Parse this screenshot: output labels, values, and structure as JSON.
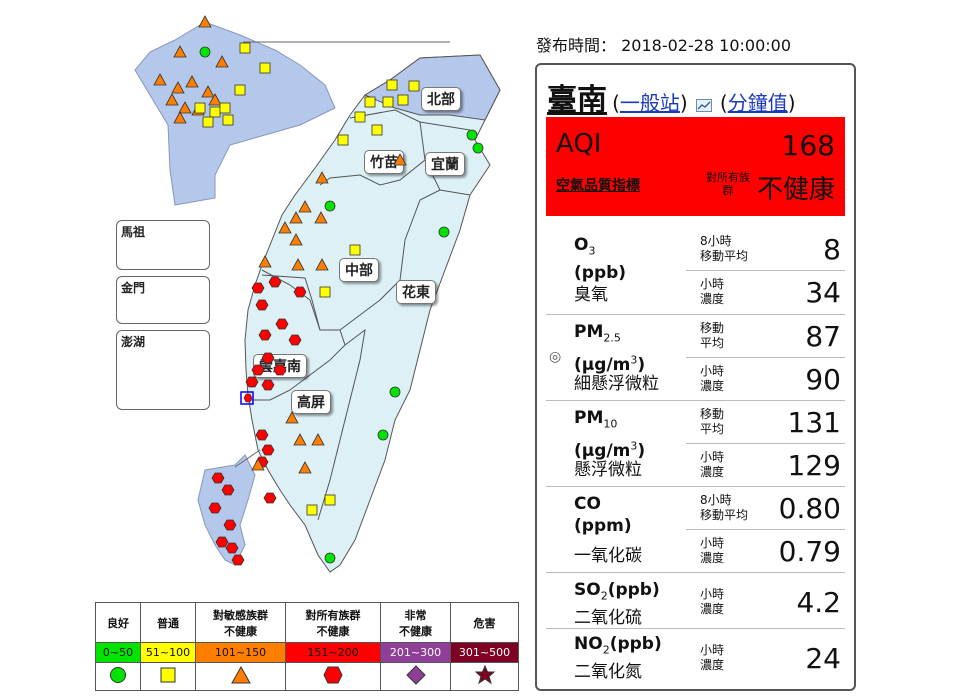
{
  "publish": {
    "label": "發布時間：",
    "datetime": "2018-02-28 10:00:00"
  },
  "station": {
    "name": "臺南",
    "type_link": "一般站",
    "minute_link": "分鐘值",
    "chart_icon": "line-chart-icon"
  },
  "aqi": {
    "label": "AQI",
    "value": "168",
    "subtitle": "空氣品質指標",
    "target_group": "對所有族群",
    "status": "不健康",
    "color": "#ff0000"
  },
  "pollutants": [
    {
      "key": "o3",
      "symbol": "O",
      "subscript": "3",
      "unit": "(ppb)",
      "chinese": "臭氧",
      "rows": [
        {
          "label_1": "8小時",
          "label_2": "移動平均",
          "value": "8"
        },
        {
          "label_1": "小時",
          "label_2": "濃度",
          "value": "34"
        }
      ]
    },
    {
      "key": "pm25",
      "symbol": "PM",
      "subscript": "2.5",
      "unit": "(μg/m",
      "unit_sup": "3",
      "unit_close": ")",
      "chinese": "細懸浮微粒",
      "radio": "◎",
      "rows": [
        {
          "label_1": "移動",
          "label_2": "平均",
          "value": "87"
        },
        {
          "label_1": "小時",
          "label_2": "濃度",
          "value": "90"
        }
      ]
    },
    {
      "key": "pm10",
      "symbol": "PM",
      "subscript": "10",
      "unit": "(μg/m",
      "unit_sup": "3",
      "unit_close": ")",
      "chinese": "懸浮微粒",
      "rows": [
        {
          "label_1": "移動",
          "label_2": "平均",
          "value": "131"
        },
        {
          "label_1": "小時",
          "label_2": "濃度",
          "value": "129"
        }
      ]
    },
    {
      "key": "co",
      "symbol": "CO",
      "unit": "(ppm)",
      "chinese": "一氧化碳",
      "rows": [
        {
          "label_1": "8小時",
          "label_2": "移動平均",
          "value": "0.80"
        },
        {
          "label_1": "小時",
          "label_2": "濃度",
          "value": "0.79"
        }
      ]
    },
    {
      "key": "so2",
      "symbol": "SO",
      "subscript": "2",
      "unit_inline": "(ppb)",
      "chinese": "二氧化硫",
      "rows": [
        {
          "label_1": "小時",
          "label_2": "濃度",
          "value": "4.2"
        }
      ]
    },
    {
      "key": "no2",
      "symbol": "NO",
      "subscript": "2",
      "unit_inline": "(ppb)",
      "chinese": "二氧化氮",
      "rows": [
        {
          "label_1": "小時",
          "label_2": "濃度",
          "value": "24"
        }
      ]
    }
  ],
  "map": {
    "regions": [
      "北部",
      "竹苗",
      "宜蘭",
      "中部",
      "花東",
      "雲嘉南",
      "高屏"
    ],
    "islands": [
      "馬祖",
      "金門",
      "澎湖"
    ]
  },
  "legend": [
    {
      "name": "良好",
      "range": "0~50",
      "color": "#00e400",
      "symbol": "circle"
    },
    {
      "name": "普通",
      "range": "51~100",
      "color": "#ffff00",
      "symbol": "square"
    },
    {
      "name": "對敏感族群\n不健康",
      "range": "101~150",
      "color": "#ff7e00",
      "symbol": "triangle"
    },
    {
      "name": "對所有族群\n不健康",
      "range": "151~200",
      "color": "#ff0000",
      "symbol": "hexagon"
    },
    {
      "name": "非常\n不健康",
      "range": "201~300",
      "color": "#8f3f97",
      "symbol": "diamond"
    },
    {
      "name": "危害",
      "range": "301~500",
      "color": "#7e0023",
      "symbol": "star"
    }
  ]
}
